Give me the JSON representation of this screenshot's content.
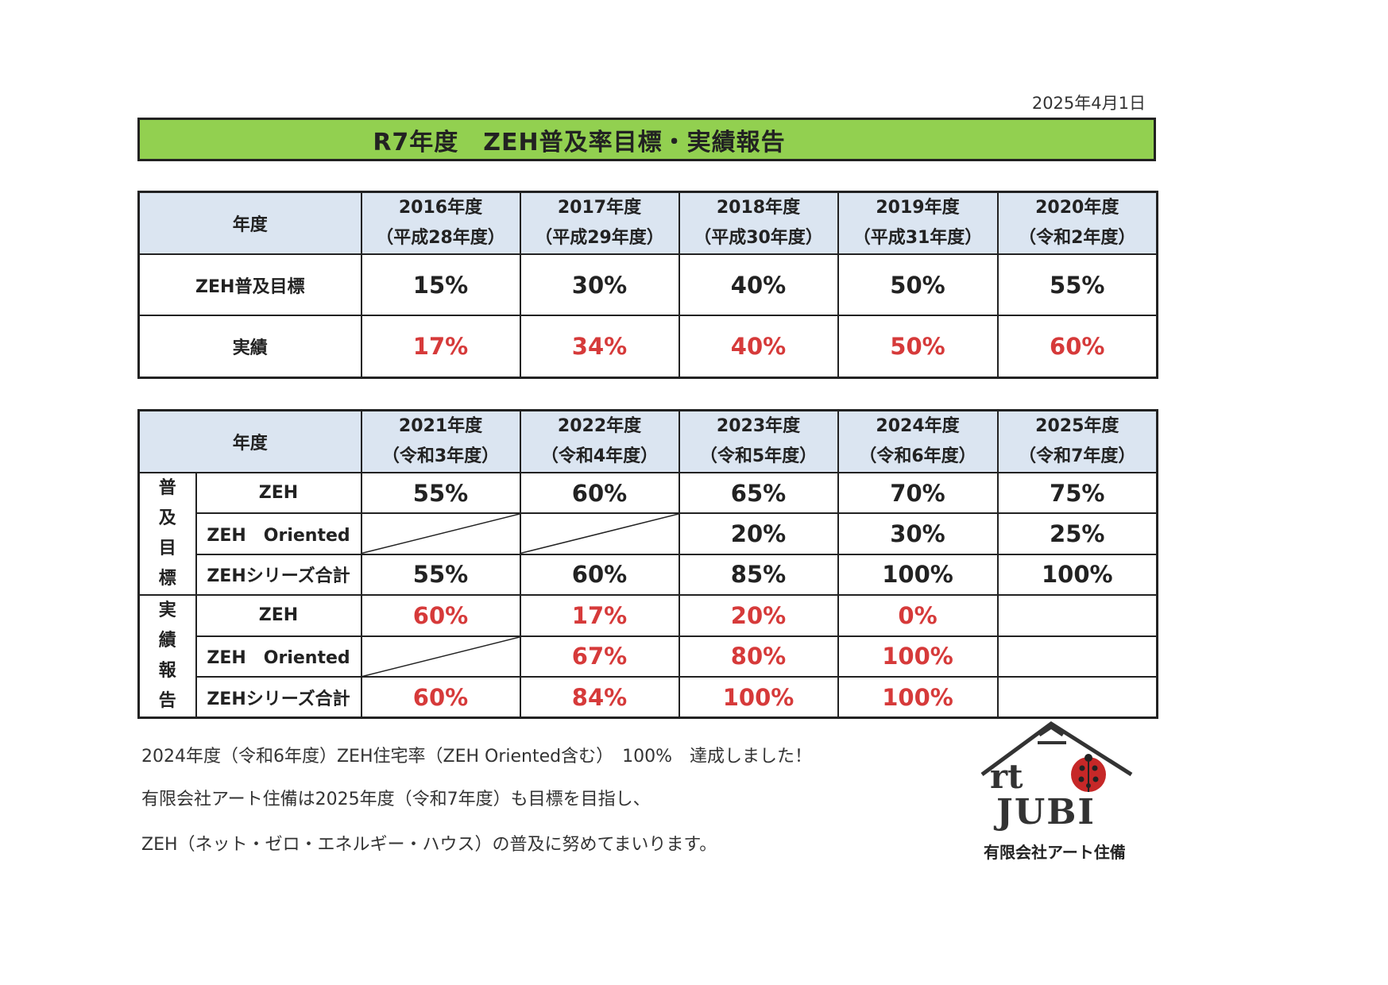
{
  "date": "2025年4月1日",
  "title": "R7年度　ZEH普及率目標・実績報告",
  "table1": {
    "header_label": "年度",
    "years": [
      {
        "year": "2016年度",
        "era": "（平成28年度）"
      },
      {
        "year": "2017年度",
        "era": "（平成29年度）"
      },
      {
        "year": "2018年度",
        "era": "（平成30年度）"
      },
      {
        "year": "2019年度",
        "era": "（平成31年度）"
      },
      {
        "year": "2020年度",
        "era": "（令和2年度）"
      }
    ],
    "rows": [
      {
        "label": "ZEH普及目標",
        "values": [
          "15%",
          "30%",
          "40%",
          "50%",
          "55%"
        ]
      },
      {
        "label": "実績",
        "values": [
          "17%",
          "34%",
          "40%",
          "50%",
          "60%"
        ]
      }
    ]
  },
  "table2": {
    "header_label": "年度",
    "years": [
      {
        "year": "2021年度",
        "era": "（令和3年度）"
      },
      {
        "year": "2022年度",
        "era": "（令和4年度）"
      },
      {
        "year": "2023年度",
        "era": "（令和5年度）"
      },
      {
        "year": "2024年度",
        "era": "（令和6年度）"
      },
      {
        "year": "2025年度",
        "era": "（令和7年度）"
      }
    ],
    "groups": [
      {
        "label_chars": [
          "普",
          "及",
          "目",
          "標"
        ],
        "rows": [
          {
            "label": "ZEH",
            "values": [
              "55%",
              "60%",
              "65%",
              "70%",
              "75%"
            ]
          },
          {
            "label": "ZEH　Oriented",
            "values": [
              "",
              "",
              "20%",
              "30%",
              "25%"
            ]
          },
          {
            "label": "ZEHシリーズ合計",
            "values": [
              "55%",
              "60%",
              "85%",
              "100%",
              "100%"
            ]
          }
        ]
      },
      {
        "label_chars": [
          "実",
          "績",
          "報",
          "告"
        ],
        "rows": [
          {
            "label": "ZEH",
            "values": [
              "60%",
              "17%",
              "20%",
              "0%",
              ""
            ]
          },
          {
            "label": "ZEH　Oriented",
            "values": [
              "",
              "67%",
              "80%",
              "100%",
              ""
            ]
          },
          {
            "label": "ZEHシリーズ合計",
            "values": [
              "60%",
              "84%",
              "100%",
              "100%",
              ""
            ]
          }
        ]
      }
    ]
  },
  "messages": [
    "2024年度（令和6年度）ZEH住宅率（ZEH Oriented含む）　100%　達成しました！",
    "有限会社アート住備は2025年度（令和7年度）も目標を目指し、",
    "ZEH（ネット・ゼロ・エネルギー・ハウス）の普及に努めてまいります。"
  ],
  "logo": {
    "line1": "rt",
    "line2": "JUBI",
    "company": "有限会社アート住備"
  },
  "colors": {
    "title_bg": "#92d050",
    "header_bg": "#dbe5f1",
    "actual_red": "#d63a3a"
  }
}
